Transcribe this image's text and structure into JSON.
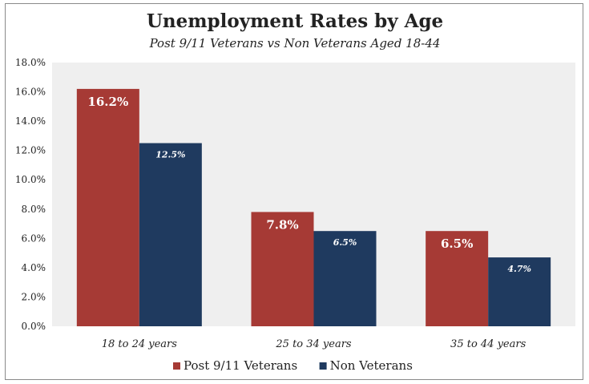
{
  "chart_data": {
    "type": "bar",
    "title": "Unemployment Rates by Age",
    "subtitle": "Post 9/11 Veterans vs Non Veterans Aged 18-44",
    "categories": [
      "18 to 24 years",
      "25 to 34 years",
      "35 to 44 years"
    ],
    "series": [
      {
        "name": "Post 9/11 Veterans",
        "color": "#a63a35",
        "values": [
          16.2,
          7.8,
          6.5
        ],
        "labels": [
          "16.2%",
          "7.8%",
          "6.5%"
        ]
      },
      {
        "name": "Non Veterans",
        "color": "#1f3a5f",
        "values": [
          12.5,
          6.5,
          4.7
        ],
        "labels": [
          "12.5%",
          "6.5%",
          "4.7%"
        ]
      }
    ],
    "ylim": [
      0,
      18
    ],
    "yticks": [
      0,
      2,
      4,
      6,
      8,
      10,
      12,
      14,
      16,
      18
    ],
    "ytick_labels": [
      "0.0%",
      "2.0%",
      "4.0%",
      "6.0%",
      "8.0%",
      "10.0%",
      "12.0%",
      "14.0%",
      "16.0%",
      "18.0%"
    ],
    "legend_placement": "bottom",
    "plot_background": "#efefef",
    "grid": false
  }
}
